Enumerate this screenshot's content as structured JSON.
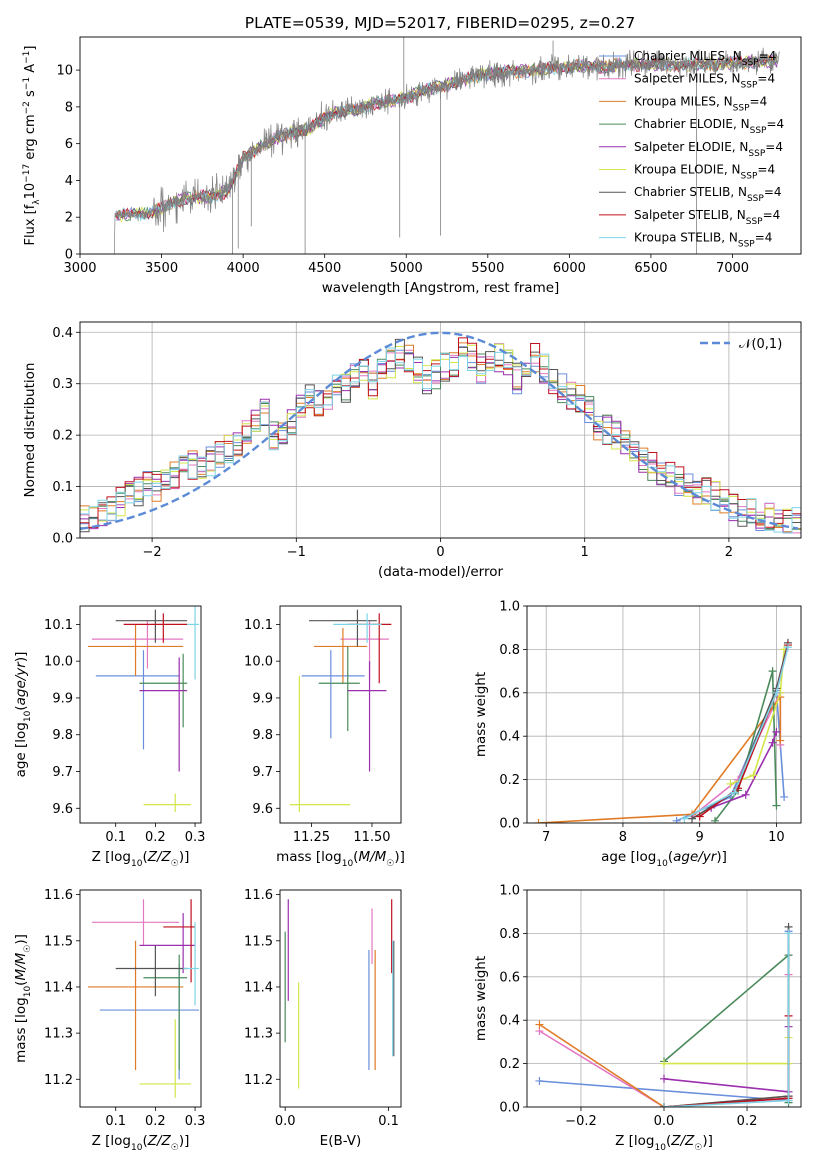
{
  "figure": {
    "title": "PLATE=0539, MJD=52017, FIBERID=0295, z=0.27"
  },
  "colors": {
    "chabrier_miles": "#6a8fdc",
    "salpeter_miles": "#e377c2",
    "kroupa_miles": "#e07b26",
    "chabrier_elodie": "#4a8a5a",
    "salpeter_elodie": "#9b2fae",
    "kroupa_elodie": "#d4e64a",
    "chabrier_stelib": "#555555",
    "salpeter_stelib": "#c0101e",
    "kroupa_stelib": "#7fd3e6",
    "data": "#808080",
    "normal": "#5b8bd6",
    "grid": "#b0b0b0"
  },
  "legend_series": [
    {
      "key": "chabrier_miles",
      "label": "Chabrier MILES, N",
      "sub": "SSP",
      "tail": "=4"
    },
    {
      "key": "salpeter_miles",
      "label": "Salpeter MILES, N",
      "sub": "SSP",
      "tail": "=4"
    },
    {
      "key": "kroupa_miles",
      "label": "Kroupa MILES, N",
      "sub": "SSP",
      "tail": "=4"
    },
    {
      "key": "chabrier_elodie",
      "label": "Chabrier ELODIE, N",
      "sub": "SSP",
      "tail": "=4"
    },
    {
      "key": "salpeter_elodie",
      "label": "Salpeter ELODIE, N",
      "sub": "SSP",
      "tail": "=4"
    },
    {
      "key": "kroupa_elodie",
      "label": "Kroupa ELODIE, N",
      "sub": "SSP",
      "tail": "=4"
    },
    {
      "key": "chabrier_stelib",
      "label": "Chabrier STELIB, N",
      "sub": "SSP",
      "tail": "=4"
    },
    {
      "key": "salpeter_stelib",
      "label": "Salpeter STELIB, N",
      "sub": "SSP",
      "tail": "=4"
    },
    {
      "key": "kroupa_stelib",
      "label": "Kroupa STELIB, N",
      "sub": "SSP",
      "tail": "=4"
    }
  ],
  "chart_data": [
    {
      "id": "spectrum",
      "type": "line",
      "xlabel": "wavelength [Angstrom, rest frame]",
      "ylabel": "Flux [f_λ10^-17 erg cm^-2 s^-1 A^-1]",
      "xlim": [
        3000,
        7420
      ],
      "ylim": [
        0,
        11.8
      ],
      "xticks": [
        3000,
        3500,
        4000,
        4500,
        5000,
        5500,
        6000,
        6500,
        7000
      ],
      "yticks": [
        0,
        2,
        4,
        6,
        8,
        10
      ],
      "grid": false,
      "legend_position": "right",
      "continuum": {
        "x": [
          3220,
          3400,
          3500,
          3600,
          3700,
          3800,
          3900,
          3950,
          4000,
          4100,
          4200,
          4300,
          4400,
          4500,
          4600,
          4700,
          4800,
          4900,
          5000,
          5100,
          5200,
          5300,
          5400,
          5500,
          5600,
          5800,
          6000,
          6200,
          6400,
          6600,
          6800,
          7000,
          7200,
          7280
        ],
        "y": [
          2.1,
          2.2,
          2.5,
          2.9,
          3.1,
          3.1,
          3.4,
          4.2,
          5.2,
          5.8,
          6.3,
          6.6,
          6.8,
          7.4,
          7.8,
          7.8,
          8.2,
          8.3,
          8.5,
          8.9,
          9.1,
          9.3,
          9.6,
          9.8,
          9.9,
          10.0,
          10.2,
          10.2,
          10.3,
          10.3,
          10.3,
          10.4,
          10.5,
          10.5
        ]
      }
    },
    {
      "id": "residuals",
      "type": "bar",
      "xlabel": "(data-model)/error",
      "ylabel": "Normed distribution",
      "xlim": [
        -2.5,
        2.5
      ],
      "ylim": [
        0,
        0.42
      ],
      "xticks": [
        -2,
        -1,
        0,
        1,
        2
      ],
      "yticks": [
        0.0,
        0.1,
        0.2,
        0.3,
        0.4
      ],
      "grid": true,
      "legend": "𝒩(0,1)",
      "legend_position": "top-right",
      "bin_edges_step": 0.1,
      "histogram_envelope": [
        0.04,
        0.04,
        0.05,
        0.06,
        0.07,
        0.08,
        0.09,
        0.1,
        0.1,
        0.11,
        0.12,
        0.13,
        0.14,
        0.14,
        0.15,
        0.16,
        0.17,
        0.18,
        0.2,
        0.22,
        0.24,
        0.2,
        0.21,
        0.23,
        0.25,
        0.27,
        0.26,
        0.28,
        0.3,
        0.29,
        0.31,
        0.32,
        0.3,
        0.32,
        0.34,
        0.36,
        0.35,
        0.33,
        0.31,
        0.32,
        0.33,
        0.34,
        0.36,
        0.35,
        0.33,
        0.34,
        0.35,
        0.34,
        0.31,
        0.32,
        0.35,
        0.33,
        0.31,
        0.29,
        0.28,
        0.27,
        0.25,
        0.22,
        0.21,
        0.2,
        0.18,
        0.16,
        0.15,
        0.14,
        0.13,
        0.12,
        0.11,
        0.1,
        0.09,
        0.09,
        0.08,
        0.07,
        0.06,
        0.05,
        0.05,
        0.04,
        0.04,
        0.04,
        0.03,
        0.03
      ],
      "normal_pdf": {
        "mu": 0,
        "sigma": 1
      }
    },
    {
      "id": "age_vs_Z",
      "type": "scatter",
      "xlabel": "Z [log10(Z/Z☉)]",
      "ylabel": "age [log10(age/yr)]",
      "xlim": [
        0.01,
        0.315
      ],
      "ylim": [
        9.56,
        10.15
      ],
      "xticks": [
        0.1,
        0.2,
        0.3
      ],
      "yticks": [
        9.6,
        9.7,
        9.8,
        9.9,
        10.0,
        10.1
      ],
      "points": [
        {
          "key": "chabrier_miles",
          "x": 0.17,
          "y": 9.96,
          "xerr": [
            0.12,
            0.09
          ],
          "yerr": [
            0.2,
            0.07
          ]
        },
        {
          "key": "salpeter_miles",
          "x": 0.18,
          "y": 10.06,
          "xerr": [
            0.14,
            0.09
          ],
          "yerr": [
            0.08,
            0.05
          ]
        },
        {
          "key": "kroupa_miles",
          "x": 0.15,
          "y": 10.04,
          "xerr": [
            0.12,
            0.12
          ],
          "yerr": [
            0.08,
            0.06
          ]
        },
        {
          "key": "chabrier_elodie",
          "x": 0.27,
          "y": 9.94,
          "xerr": [
            0.11,
            0.01
          ],
          "yerr": [
            0.12,
            0.08
          ]
        },
        {
          "key": "salpeter_elodie",
          "x": 0.26,
          "y": 9.92,
          "xerr": [
            0.1,
            0.02
          ],
          "yerr": [
            0.22,
            0.09
          ]
        },
        {
          "key": "kroupa_elodie",
          "x": 0.25,
          "y": 9.61,
          "xerr": [
            0.08,
            0.04
          ],
          "yerr": [
            0.02,
            0.03
          ]
        },
        {
          "key": "chabrier_stelib",
          "x": 0.2,
          "y": 10.11,
          "xerr": [
            0.1,
            0.08
          ],
          "yerr": [
            0.06,
            0.03
          ]
        },
        {
          "key": "salpeter_stelib",
          "x": 0.22,
          "y": 10.1,
          "xerr": [
            0.1,
            0.06
          ],
          "yerr": [
            0.05,
            0.03
          ]
        },
        {
          "key": "kroupa_stelib",
          "x": 0.3,
          "y": 10.1,
          "xerr": [
            0.02,
            0.01
          ],
          "yerr": [
            0.15,
            0.05
          ]
        }
      ]
    },
    {
      "id": "age_vs_mass",
      "type": "scatter",
      "xlabel": "mass [log10(M/M☉)]",
      "ylabel": "",
      "xlim": [
        11.12,
        11.62
      ],
      "ylim": [
        9.56,
        10.15
      ],
      "xticks": [
        11.25,
        11.5
      ],
      "yticks": [
        9.6,
        9.7,
        9.8,
        9.9,
        10.0,
        10.1
      ],
      "points": [
        {
          "key": "chabrier_miles",
          "x": 11.33,
          "y": 9.96,
          "xerr": [
            0.12,
            0.14
          ],
          "yerr": [
            0.17,
            0.07
          ]
        },
        {
          "key": "salpeter_miles",
          "x": 11.49,
          "y": 10.06,
          "xerr": [
            0.12,
            0.08
          ],
          "yerr": [
            0.11,
            0.05
          ]
        },
        {
          "key": "kroupa_miles",
          "x": 11.38,
          "y": 10.04,
          "xerr": [
            0.12,
            0.1
          ],
          "yerr": [
            0.1,
            0.05
          ]
        },
        {
          "key": "chabrier_elodie",
          "x": 11.4,
          "y": 9.94,
          "xerr": [
            0.12,
            0.05
          ],
          "yerr": [
            0.13,
            0.1
          ]
        },
        {
          "key": "salpeter_elodie",
          "x": 11.49,
          "y": 9.92,
          "xerr": [
            0.09,
            0.07
          ],
          "yerr": [
            0.22,
            0.08
          ]
        },
        {
          "key": "kroupa_elodie",
          "x": 11.2,
          "y": 9.61,
          "xerr": [
            0.04,
            0.21
          ],
          "yerr": [
            0.02,
            0.35
          ]
        },
        {
          "key": "chabrier_stelib",
          "x": 11.44,
          "y": 10.11,
          "xerr": [
            0.2,
            0.08
          ],
          "yerr": [
            0.07,
            0.03
          ]
        },
        {
          "key": "salpeter_stelib",
          "x": 11.53,
          "y": 10.1,
          "xerr": [
            0.13,
            0.05
          ],
          "yerr": [
            0.16,
            0.03
          ]
        },
        {
          "key": "kroupa_stelib",
          "x": 11.48,
          "y": 10.1,
          "xerr": [
            0.14,
            0.06
          ],
          "yerr": [
            0.05,
            0.03
          ]
        }
      ]
    },
    {
      "id": "mass_weight_vs_age",
      "type": "line",
      "xlabel": "age [log10(age/yr)]",
      "ylabel": "mass weight",
      "xlim": [
        6.75,
        10.32
      ],
      "ylim": [
        0,
        1.0
      ],
      "xticks": [
        7,
        8,
        9,
        10
      ],
      "yticks": [
        0.0,
        0.2,
        0.4,
        0.6,
        0.8,
        1.0
      ],
      "grid": true,
      "series": [
        {
          "key": "chabrier_miles",
          "x": [
            8.7,
            9.4,
            10.0,
            10.1
          ],
          "y": [
            0.01,
            0.12,
            0.61,
            0.12
          ]
        },
        {
          "key": "salpeter_miles",
          "x": [
            8.9,
            9.5,
            10.05,
            10.05
          ],
          "y": [
            0.03,
            0.2,
            0.6,
            0.36
          ]
        },
        {
          "key": "kroupa_miles",
          "x": [
            6.9,
            8.9,
            10.05,
            10.05
          ],
          "y": [
            0.0,
            0.04,
            0.58,
            0.38
          ]
        },
        {
          "key": "chabrier_elodie",
          "x": [
            9.2,
            9.5,
            9.95,
            10.0
          ],
          "y": [
            0.01,
            0.15,
            0.7,
            0.08
          ]
        },
        {
          "key": "salpeter_elodie",
          "x": [
            9.15,
            9.6,
            9.95,
            10.0
          ],
          "y": [
            0.07,
            0.13,
            0.37,
            0.42
          ]
        },
        {
          "key": "kroupa_elodie",
          "x": [
            9.4,
            9.7,
            10.05,
            10.1
          ],
          "y": [
            0.18,
            0.22,
            0.6,
            0.8
          ]
        },
        {
          "key": "chabrier_stelib",
          "x": [
            8.9,
            9.45,
            10.0,
            10.15
          ],
          "y": [
            0.02,
            0.14,
            0.62,
            0.83
          ]
        },
        {
          "key": "salpeter_stelib",
          "x": [
            9.0,
            9.5,
            10.0,
            10.15
          ],
          "y": [
            0.03,
            0.16,
            0.6,
            0.82
          ]
        },
        {
          "key": "kroupa_stelib",
          "x": [
            8.8,
            9.45,
            10.0,
            10.15
          ],
          "y": [
            0.02,
            0.14,
            0.6,
            0.81
          ]
        }
      ]
    },
    {
      "id": "mass_vs_Z",
      "type": "scatter",
      "xlabel": "Z [log10(Z/Z☉)]",
      "ylabel": "mass [log10(M/M☉)]",
      "xlim": [
        0.01,
        0.315
      ],
      "ylim": [
        11.14,
        11.61
      ],
      "xticks": [
        0.1,
        0.2,
        0.3
      ],
      "yticks": [
        11.2,
        11.3,
        11.4,
        11.5,
        11.6
      ],
      "points": [
        {
          "key": "chabrier_miles",
          "x": 0.26,
          "y": 11.35,
          "xerr": [
            0.2,
            0.05
          ],
          "yerr": [
            0.15,
            0.1
          ]
        },
        {
          "key": "salpeter_miles",
          "x": 0.17,
          "y": 11.54,
          "xerr": [
            0.13,
            0.09
          ],
          "yerr": [
            0.05,
            0.05
          ]
        },
        {
          "key": "kroupa_miles",
          "x": 0.15,
          "y": 11.4,
          "xerr": [
            0.12,
            0.12
          ],
          "yerr": [
            0.18,
            0.1
          ]
        },
        {
          "key": "chabrier_elodie",
          "x": 0.26,
          "y": 11.42,
          "xerr": [
            0.09,
            0.02
          ],
          "yerr": [
            0.2,
            0.05
          ]
        },
        {
          "key": "salpeter_elodie",
          "x": 0.27,
          "y": 11.49,
          "xerr": [
            0.11,
            0.03
          ],
          "yerr": [
            0.06,
            0.07
          ]
        },
        {
          "key": "kroupa_elodie",
          "x": 0.25,
          "y": 11.19,
          "xerr": [
            0.09,
            0.04
          ],
          "yerr": [
            0.03,
            0.14
          ]
        },
        {
          "key": "chabrier_stelib",
          "x": 0.2,
          "y": 11.44,
          "xerr": [
            0.1,
            0.08
          ],
          "yerr": [
            0.06,
            0.05
          ]
        },
        {
          "key": "salpeter_stelib",
          "x": 0.29,
          "y": 11.53,
          "xerr": [
            0.07,
            0.01
          ],
          "yerr": [
            0.12,
            0.06
          ]
        },
        {
          "key": "kroupa_stelib",
          "x": 0.3,
          "y": 11.44,
          "xerr": [
            0.03,
            0.01
          ],
          "yerr": [
            0.08,
            0.1
          ]
        }
      ]
    },
    {
      "id": "mass_vs_ebv",
      "type": "scatter",
      "xlabel": "E(B-V)",
      "ylabel": "",
      "xlim": [
        -0.005,
        0.112
      ],
      "ylim": [
        11.14,
        11.61
      ],
      "xticks": [
        0.0,
        0.1
      ],
      "yticks": [
        11.2,
        11.3,
        11.4,
        11.5,
        11.6
      ],
      "points": [
        {
          "key": "chabrier_miles",
          "x": 0.081,
          "y": 11.35,
          "yerr": [
            0.13,
            0.13
          ]
        },
        {
          "key": "salpeter_miles",
          "x": 0.084,
          "y": 11.5,
          "yerr": [
            0.05,
            0.07
          ]
        },
        {
          "key": "kroupa_miles",
          "x": 0.087,
          "y": 11.35,
          "yerr": [
            0.13,
            0.13
          ]
        },
        {
          "key": "chabrier_elodie",
          "x": 0.0,
          "y": 11.4,
          "yerr": [
            0.12,
            0.12
          ]
        },
        {
          "key": "salpeter_elodie",
          "x": 0.003,
          "y": 11.47,
          "yerr": [
            0.1,
            0.12
          ]
        },
        {
          "key": "kroupa_elodie",
          "x": 0.013,
          "y": 11.28,
          "yerr": [
            0.1,
            0.13
          ]
        },
        {
          "key": "chabrier_stelib",
          "x": 0.105,
          "y": 11.37,
          "yerr": [
            0.12,
            0.13
          ]
        },
        {
          "key": "salpeter_stelib",
          "x": 0.103,
          "y": 11.5,
          "yerr": [
            0.07,
            0.09
          ]
        },
        {
          "key": "kroupa_stelib",
          "x": 0.104,
          "y": 11.38,
          "yerr": [
            0.13,
            0.12
          ]
        }
      ]
    },
    {
      "id": "mass_weight_vs_Z",
      "type": "line",
      "xlabel": "Z [log10(Z/Z☉)]",
      "ylabel": "mass weight",
      "xlim": [
        -0.33,
        0.33
      ],
      "ylim": [
        0,
        1.0
      ],
      "xticks": [
        -0.2,
        0.0,
        0.2
      ],
      "yticks": [
        0.0,
        0.2,
        0.4,
        0.6,
        0.8,
        1.0
      ],
      "grid": true,
      "series": [
        {
          "key": "chabrier_miles",
          "x": [
            -0.3,
            0.3,
            0.3
          ],
          "y": [
            0.12,
            0.03,
            0.81
          ]
        },
        {
          "key": "salpeter_miles",
          "x": [
            -0.3,
            0.0,
            0.3,
            0.3
          ],
          "y": [
            0.35,
            0.0,
            0.04,
            0.61
          ]
        },
        {
          "key": "kroupa_miles",
          "x": [
            -0.3,
            0.0,
            0.3
          ],
          "y": [
            0.38,
            0.0,
            0.05
          ]
        },
        {
          "key": "chabrier_elodie",
          "x": [
            0.0,
            0.3,
            0.3
          ],
          "y": [
            0.21,
            0.7,
            0.02
          ]
        },
        {
          "key": "salpeter_elodie",
          "x": [
            0.0,
            0.3,
            0.3
          ],
          "y": [
            0.13,
            0.07,
            0.37
          ]
        },
        {
          "key": "kroupa_elodie",
          "x": [
            0.0,
            0.3,
            0.3
          ],
          "y": [
            0.2,
            0.2,
            0.32
          ]
        },
        {
          "key": "chabrier_stelib",
          "x": [
            0.0,
            0.3,
            0.3
          ],
          "y": [
            0.0,
            0.05,
            0.83
          ]
        },
        {
          "key": "salpeter_stelib",
          "x": [
            0.0,
            0.3,
            0.3
          ],
          "y": [
            0.0,
            0.04,
            0.42
          ]
        },
        {
          "key": "kroupa_stelib",
          "x": [
            0.0,
            0.3,
            0.3
          ],
          "y": [
            0.0,
            0.03,
            0.8
          ]
        }
      ]
    }
  ]
}
